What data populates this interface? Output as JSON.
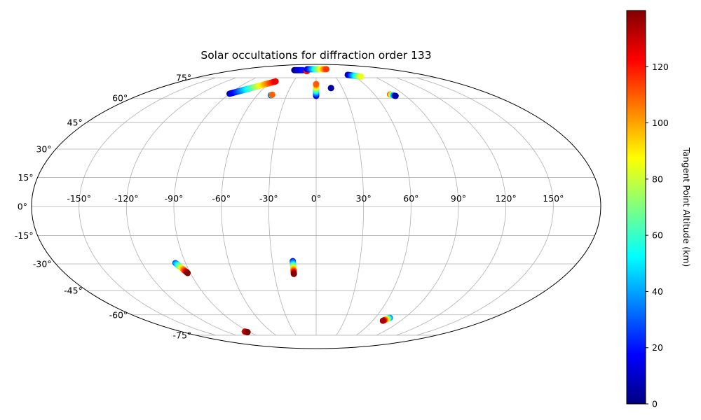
{
  "chart_data": {
    "type": "scatter",
    "projection": "mollweide",
    "title": "Solar occultations for diffraction order 133",
    "xlabel": "",
    "ylabel": "",
    "grid": true,
    "xlim": [
      -180,
      180
    ],
    "ylim": [
      -90,
      90
    ],
    "lon_ticks": [
      -150,
      -120,
      -90,
      -60,
      -30,
      0,
      30,
      60,
      90,
      120,
      150
    ],
    "lon_tick_labels": [
      "-150°",
      "-120°",
      "-90°",
      "-60°",
      "-30°",
      "0°",
      "30°",
      "60°",
      "90°",
      "120°",
      "150°"
    ],
    "lat_ticks": [
      -75,
      -60,
      -45,
      -30,
      -15,
      0,
      15,
      30,
      45,
      60,
      75
    ],
    "lat_tick_labels": [
      "-75°",
      "-60°",
      "-45°",
      "-30°",
      "-15°",
      "0°",
      "15°",
      "30°",
      "45°",
      "60°",
      "75°"
    ],
    "colorbar": {
      "label": "Tangent Point Altitude (km)",
      "colormap": "jet",
      "range": [
        0,
        140
      ],
      "ticks": [
        0,
        20,
        40,
        60,
        80,
        100,
        120
      ],
      "tick_labels": [
        "0",
        "20",
        "40",
        "60",
        "80",
        "100",
        "120"
      ]
    },
    "series": [
      {
        "lon_start": -97,
        "lat_start": -29.5,
        "lon_end": -92,
        "lat_end": -35,
        "alt_start": 30,
        "alt_end": 140
      },
      {
        "lon_start": -16,
        "lat_start": -28.5,
        "lon_end": -16,
        "lat_end": -35.5,
        "alt_start": 20,
        "alt_end": 140
      },
      {
        "lon_start": 75,
        "lat_start": -62,
        "lon_end": 71,
        "lat_end": -64,
        "alt_start": 35,
        "alt_end": 135
      },
      {
        "lon_start": -95,
        "lat_start": -72,
        "lon_end": -93,
        "lat_end": -72.5,
        "alt_start": 125,
        "alt_end": 140
      },
      {
        "lon_start": -90,
        "lat_start": 63,
        "lon_end": -54,
        "lat_end": 72,
        "alt_start": 5,
        "alt_end": 125
      },
      {
        "lon_start": -46,
        "lat_start": 62,
        "lon_end": -45,
        "lat_end": 62.3,
        "alt_start": 0,
        "alt_end": 110
      },
      {
        "lon_start": -49,
        "lat_start": 82,
        "lon_end": -30,
        "lat_end": 82,
        "alt_start": 0,
        "alt_end": 20
      },
      {
        "lon_start": -20,
        "lat_start": 81,
        "lon_end": -19,
        "lat_end": 81,
        "alt_start": 130,
        "alt_end": 120
      },
      {
        "lon_start": -22,
        "lat_start": 83,
        "lon_end": 25,
        "lat_end": 83,
        "alt_start": 10,
        "alt_end": 115
      },
      {
        "lon_start": 0,
        "lat_start": 61.5,
        "lon_end": 0,
        "lat_end": 70,
        "alt_start": 10,
        "alt_end": 110
      },
      {
        "lon_start": 17,
        "lat_start": 67,
        "lon_end": 17,
        "lat_end": 67,
        "alt_start": 5,
        "alt_end": 5
      },
      {
        "lon_start": 53,
        "lat_start": 77.5,
        "lon_end": 70,
        "lat_end": 76,
        "alt_start": 5,
        "alt_end": 85
      },
      {
        "lon_start": 76,
        "lat_start": 62.5,
        "lon_end": 80,
        "lat_end": 61.5,
        "alt_start": 110,
        "alt_end": 5
      }
    ]
  }
}
